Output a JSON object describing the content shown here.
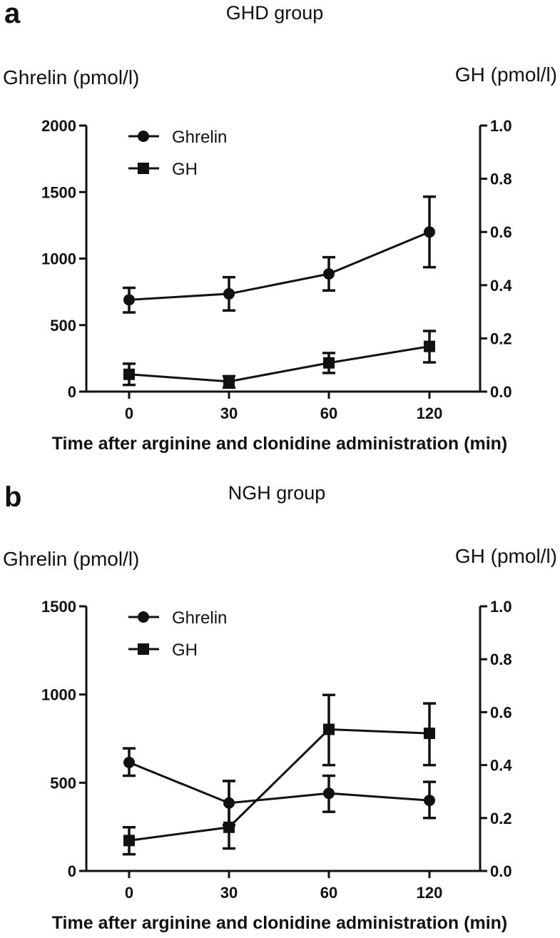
{
  "chart_data": [
    {
      "panel": "a",
      "type": "line",
      "title": "GHD group",
      "xlabel": "Time after arginine and clonidine administration (min)",
      "ylabel_left": "Ghrelin (pmol/l)",
      "ylabel_right": "GH (pmol/l)",
      "categories": [
        "0",
        "30",
        "60",
        "120"
      ],
      "ylim_left": [
        0,
        2000
      ],
      "yticks_left": [
        0,
        500,
        1000,
        1500,
        2000
      ],
      "ylim_right": [
        0,
        1.0
      ],
      "yticks_right": [
        "0.0",
        "0.2",
        "0.4",
        "0.6",
        "0.8",
        "1.0"
      ],
      "legend_position": "top-left",
      "series": [
        {
          "name": "Ghrelin",
          "marker": "circle",
          "axis": "left",
          "values": [
            690,
            735,
            885,
            1200
          ],
          "err_low": [
            595,
            610,
            760,
            935
          ],
          "err_high": [
            780,
            860,
            1010,
            1465
          ]
        },
        {
          "name": "GH",
          "marker": "square",
          "axis": "right",
          "values": [
            0.065,
            0.038,
            0.108,
            0.17
          ],
          "err_low": [
            0.025,
            0.015,
            0.07,
            0.11
          ],
          "err_high": [
            0.105,
            0.058,
            0.145,
            0.228
          ]
        }
      ]
    },
    {
      "panel": "b",
      "type": "line",
      "title": "NGH group",
      "xlabel": "Time after arginine and clonidine administration (min)",
      "ylabel_left": "Ghrelin (pmol/l)",
      "ylabel_right": "GH (pmol/l)",
      "categories": [
        "0",
        "30",
        "60",
        "120"
      ],
      "ylim_left": [
        0,
        1500
      ],
      "yticks_left": [
        0,
        500,
        1000,
        1500
      ],
      "ylim_right": [
        0,
        1.0
      ],
      "yticks_right": [
        "0.0",
        "0.2",
        "0.4",
        "0.6",
        "0.8",
        "1.0"
      ],
      "legend_position": "top-left",
      "series": [
        {
          "name": "Ghrelin",
          "marker": "circle",
          "axis": "left",
          "values": [
            615,
            385,
            440,
            400
          ],
          "err_low": [
            540,
            260,
            335,
            300
          ],
          "err_high": [
            695,
            510,
            540,
            505
          ]
        },
        {
          "name": "GH",
          "marker": "square",
          "axis": "right",
          "values": [
            0.115,
            0.165,
            0.535,
            0.52
          ],
          "err_low": [
            0.063,
            0.085,
            0.4,
            0.4
          ],
          "err_high": [
            0.165,
            0.34,
            0.665,
            0.633
          ]
        }
      ]
    }
  ]
}
